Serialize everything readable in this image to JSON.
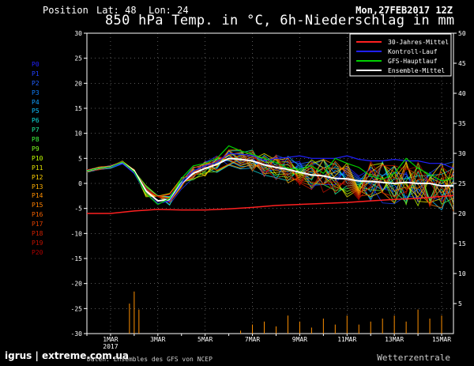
{
  "header": {
    "position_label": "Position",
    "lat_label": "Lat: 48",
    "lon_label": "Lon: 24",
    "title": "850 hPa Temp. in °C, 6h-Niederschlag in mm",
    "run": "Mon,27FEB2017 12Z"
  },
  "footer": {
    "left": "Daten: Ensembles des GFS von NCEP",
    "right": "Wetterzentrale",
    "watermark": "igrus | extreme.com.ua"
  },
  "members": [
    {
      "label": "P0",
      "color": "#2020ff"
    },
    {
      "label": "P1",
      "color": "#2040ff"
    },
    {
      "label": "P2",
      "color": "#2060ff"
    },
    {
      "label": "P3",
      "color": "#1080ff"
    },
    {
      "label": "P4",
      "color": "#10a0ff"
    },
    {
      "label": "P5",
      "color": "#10c0ff"
    },
    {
      "label": "P6",
      "color": "#10e0e0"
    },
    {
      "label": "P7",
      "color": "#20f0a0"
    },
    {
      "label": "P8",
      "color": "#40ff40"
    },
    {
      "label": "P9",
      "color": "#80ff20"
    },
    {
      "label": "P10",
      "color": "#c0ff00"
    },
    {
      "label": "P11",
      "color": "#e0e000"
    },
    {
      "label": "P12",
      "color": "#ffd000"
    },
    {
      "label": "P13",
      "color": "#ffb000"
    },
    {
      "label": "P14",
      "color": "#ff9000"
    },
    {
      "label": "P15",
      "color": "#ff8000"
    },
    {
      "label": "P16",
      "color": "#f06000"
    },
    {
      "label": "P17",
      "color": "#e04000"
    },
    {
      "label": "P18",
      "color": "#d02000"
    },
    {
      "label": "P19",
      "color": "#c01000"
    },
    {
      "label": "P20",
      "color": "#b00000"
    }
  ],
  "chart_data": {
    "type": "line",
    "title": "850 hPa Temp. in °C, 6h-Niederschlag in mm",
    "x_ticks": [
      "1MAR",
      "3MAR",
      "5MAR",
      "7MAR",
      "9MAR",
      "11MAR",
      "13MAR",
      "15MAR"
    ],
    "x_sublabel": "2017",
    "x_range_days": [
      0,
      15.5
    ],
    "y_left": {
      "ticks": [
        30,
        25,
        20,
        15,
        10,
        5,
        0,
        -5,
        -10,
        -15,
        -20,
        -25,
        -30
      ],
      "lim": [
        -30,
        30
      ]
    },
    "y_right": {
      "ticks": [
        50,
        45,
        40,
        35,
        30,
        25,
        20,
        15,
        10,
        5
      ],
      "lim": [
        0,
        50
      ]
    },
    "legend": {
      "placement": "top-right",
      "entries": [
        {
          "name": "30-Jahres-Mittel",
          "color": "#ff2020"
        },
        {
          "name": "Kontroll-Lauf",
          "color": "#2020ff"
        },
        {
          "name": "GFS-Hauptlauf",
          "color": "#00d000"
        },
        {
          "name": "Ensemble-Mittel",
          "color": "#ffffff"
        }
      ]
    },
    "series": [
      {
        "name": "30-Jahres-Mittel",
        "color": "#ff2020",
        "width": 1.5,
        "x": [
          0,
          1,
          2,
          3,
          4,
          5,
          6,
          7,
          8,
          9,
          10,
          11,
          12,
          13,
          14,
          15,
          15.5
        ],
        "y": [
          -6,
          -6,
          -5.5,
          -5.2,
          -5.3,
          -5.3,
          -5.1,
          -4.8,
          -4.4,
          -4.2,
          -4,
          -3.8,
          -3.5,
          -3.2,
          -3,
          -2.6,
          -2.4
        ]
      },
      {
        "name": "Ensemble-Mittel",
        "color": "#ffffff",
        "width": 2,
        "x": [
          0,
          0.5,
          1,
          1.5,
          2,
          2.5,
          3,
          3.5,
          4,
          4.5,
          5,
          5.5,
          6,
          6.5,
          7,
          7.5,
          8,
          8.5,
          9,
          9.5,
          10,
          10.5,
          11,
          11.5,
          12,
          12.5,
          13,
          13.5,
          14,
          14.5,
          15,
          15.5
        ],
        "y": [
          2.5,
          3,
          3.3,
          4.2,
          2.5,
          -1.5,
          -3.5,
          -3.2,
          0,
          2,
          3,
          3.8,
          5,
          4.8,
          4.5,
          3.7,
          3.2,
          2.8,
          2.2,
          1.7,
          1.5,
          1,
          0.9,
          0.5,
          0.4,
          0.2,
          0,
          0.2,
          0,
          0,
          -0.5,
          -0.5
        ]
      },
      {
        "name": "Kontroll-Lauf",
        "color": "#2020ff",
        "width": 1.2,
        "x": [
          0,
          0.5,
          1,
          1.5,
          2,
          2.5,
          3,
          3.5,
          4,
          4.5,
          5,
          5.5,
          6,
          6.5,
          7,
          7.5,
          8,
          8.5,
          9,
          9.5,
          10,
          10.5,
          11,
          11.5,
          12,
          12.5,
          13,
          13.5,
          14,
          14.5,
          15,
          15.5
        ],
        "y": [
          2.5,
          3,
          3.2,
          4,
          2,
          -2,
          -4,
          -3.5,
          0,
          2.5,
          3.5,
          4.2,
          6,
          5.8,
          5.6,
          4.5,
          5,
          5.2,
          5.5,
          5,
          5,
          5,
          5.5,
          4.8,
          4.5,
          4.5,
          4.8,
          4.5,
          4.5,
          4,
          4,
          3
        ]
      },
      {
        "name": "GFS-Hauptlauf",
        "color": "#00d000",
        "width": 1.2,
        "x": [
          0,
          0.5,
          1,
          1.5,
          2,
          2.5,
          3,
          3.5,
          4,
          4.5,
          5,
          5.5,
          6,
          6.5,
          7,
          7.5,
          8,
          8.5,
          9,
          9.5,
          10,
          10.5,
          11,
          11.5,
          12,
          12.5,
          13,
          13.5,
          14,
          14.5,
          15,
          15.5
        ],
        "y": [
          2.5,
          3,
          3.3,
          4.3,
          2.3,
          -2,
          -4.2,
          -3,
          1,
          3.5,
          4,
          5,
          7.5,
          6.5,
          5.8,
          5,
          4.2,
          3,
          2.8,
          3.5,
          2,
          5,
          4,
          3.2,
          1.5,
          0.8,
          2,
          5,
          3,
          1.8,
          0.5,
          1
        ]
      }
    ],
    "precip": {
      "x": [
        1.8,
        2,
        2.2,
        6.5,
        7,
        7.5,
        8,
        8.5,
        9,
        9.5,
        10,
        10.5,
        11,
        11.5,
        12,
        12.5,
        13,
        13.5,
        14,
        14.5,
        15
      ],
      "y": [
        5,
        7,
        4,
        0.5,
        1.5,
        2,
        1.2,
        3,
        2,
        1,
        2.5,
        1.5,
        3,
        1.5,
        2,
        2.5,
        3,
        2,
        4,
        2.5,
        3
      ]
    }
  }
}
